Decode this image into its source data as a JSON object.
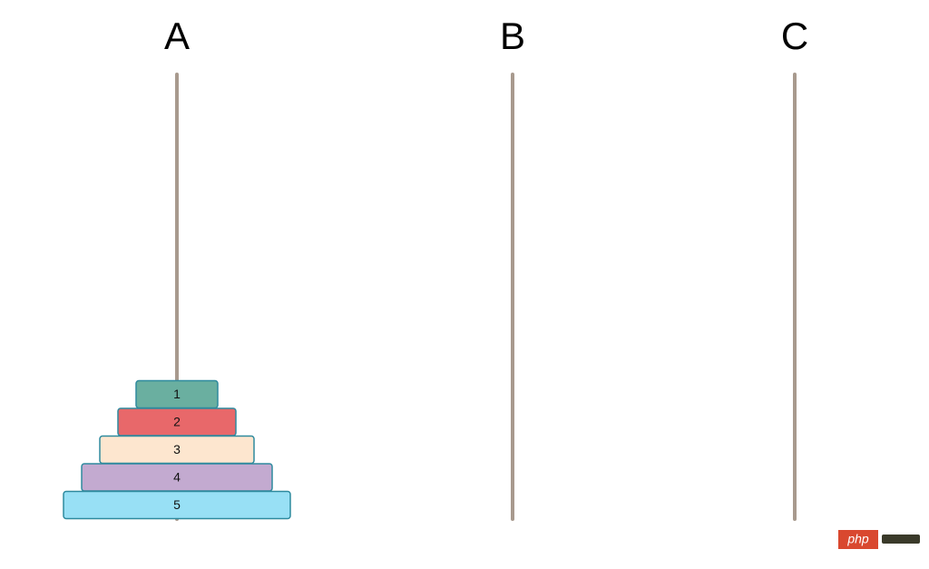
{
  "pegs": [
    {
      "label": "A",
      "disks": [
        {
          "label": "1",
          "color": "#6aafa0"
        },
        {
          "label": "2",
          "color": "#e8686a"
        },
        {
          "label": "3",
          "color": "#fde6cf"
        },
        {
          "label": "4",
          "color": "#c3aad0"
        },
        {
          "label": "5",
          "color": "#98e0f5"
        }
      ]
    },
    {
      "label": "B",
      "disks": []
    },
    {
      "label": "C",
      "disks": []
    }
  ],
  "watermark": {
    "text": "php"
  }
}
